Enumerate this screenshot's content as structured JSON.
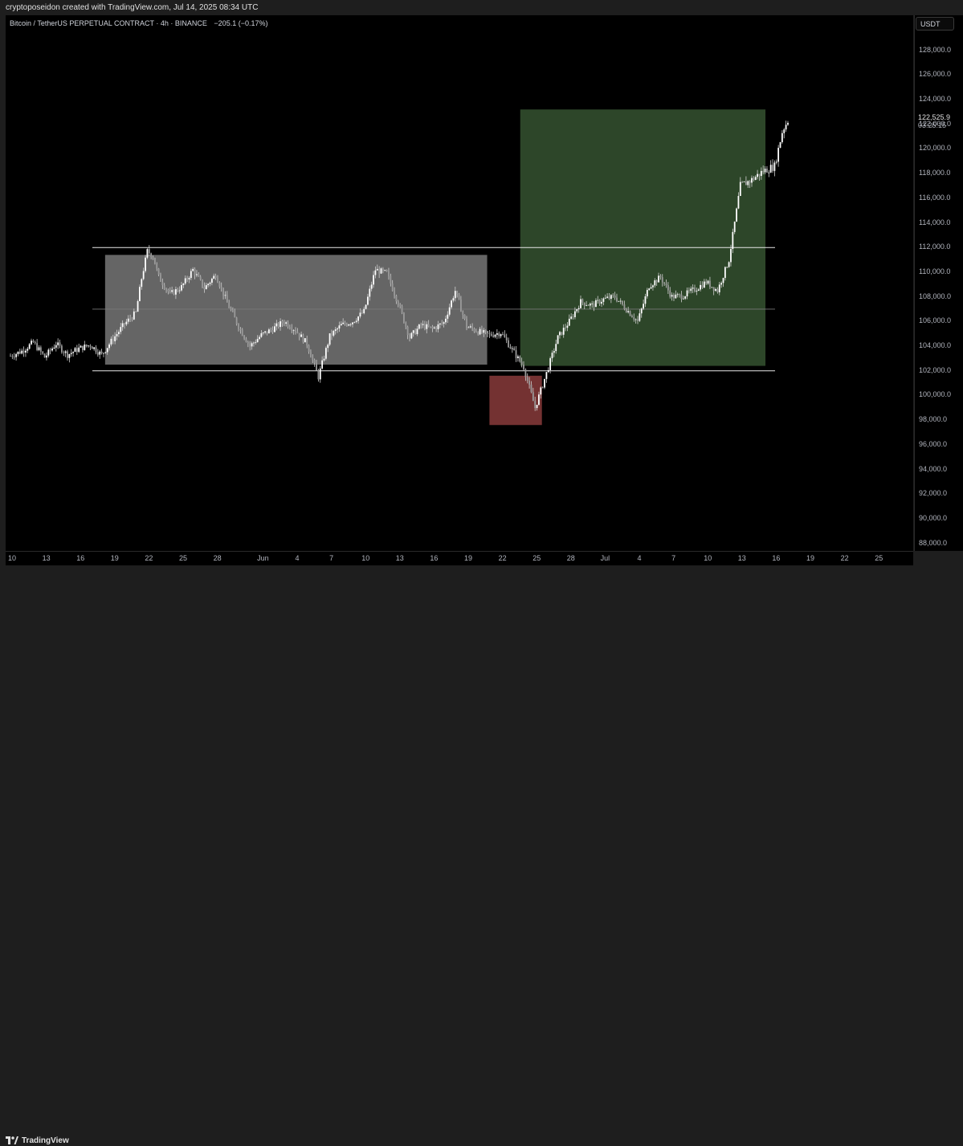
{
  "header": {
    "attribution": "cryptoposeidon created with TradingView.com, Jul 14, 2025 08:34 UTC"
  },
  "legend": {
    "symbol": "Bitcoin / TetherUS PERPETUAL CONTRACT · 4h · BINANCE",
    "change": "−205.1 (−0.17%)"
  },
  "price_axis": {
    "currency": "USDT",
    "last_price": "122,525.9",
    "countdown": "03:25:15"
  },
  "footer": {
    "brand": "TradingView"
  },
  "colors": {
    "background": "#000000",
    "range_box": "#8c8c8c",
    "target_box": "#2f4a2b",
    "stop_box": "#7a3535",
    "candle": "#ffffff"
  },
  "chart_data": {
    "type": "candlestick",
    "timeframe": "4h",
    "ylim": [
      87000,
      130000
    ],
    "y_ticks": [
      88000,
      90000,
      92000,
      94000,
      96000,
      98000,
      100000,
      102000,
      104000,
      106000,
      108000,
      110000,
      112000,
      114000,
      116000,
      118000,
      120000,
      122000,
      124000,
      126000,
      128000
    ],
    "y_tick_labels": [
      "88,000.0",
      "90,000.0",
      "92,000.0",
      "94,000.0",
      "96,000.0",
      "98,000.0",
      "100,000.0",
      "102,000.0",
      "104,000.0",
      "106,000.0",
      "108,000.0",
      "110,000.0",
      "112,000.0",
      "114,000.0",
      "116,000.0",
      "118,000.0",
      "120,000.0",
      "122,000.0",
      "124,000.0",
      "126,000.0",
      "128,000.0"
    ],
    "x_ticks": [
      {
        "day": 0,
        "label": "10"
      },
      {
        "day": 3,
        "label": "13"
      },
      {
        "day": 6,
        "label": "16"
      },
      {
        "day": 9,
        "label": "19"
      },
      {
        "day": 12,
        "label": "22"
      },
      {
        "day": 15,
        "label": "25"
      },
      {
        "day": 18,
        "label": "28"
      },
      {
        "day": 22,
        "label": "Jun"
      },
      {
        "day": 25,
        "label": "4"
      },
      {
        "day": 28,
        "label": "7"
      },
      {
        "day": 31,
        "label": "10"
      },
      {
        "day": 34,
        "label": "13"
      },
      {
        "day": 37,
        "label": "16"
      },
      {
        "day": 40,
        "label": "19"
      },
      {
        "day": 43,
        "label": "22"
      },
      {
        "day": 46,
        "label": "25"
      },
      {
        "day": 49,
        "label": "28"
      },
      {
        "day": 52,
        "label": "Jul"
      },
      {
        "day": 55,
        "label": "4"
      },
      {
        "day": 58,
        "label": "7"
      },
      {
        "day": 61,
        "label": "10"
      },
      {
        "day": 64,
        "label": "13"
      },
      {
        "day": 67,
        "label": "16"
      },
      {
        "day": 70,
        "label": "19"
      },
      {
        "day": 73,
        "label": "22"
      },
      {
        "day": 76,
        "label": "25"
      }
    ],
    "series_path": [
      [
        0,
        103200
      ],
      [
        1,
        103600
      ],
      [
        2,
        104300
      ],
      [
        3,
        103100
      ],
      [
        4,
        104200
      ],
      [
        5,
        103300
      ],
      [
        6,
        103800
      ],
      [
        7,
        104100
      ],
      [
        8,
        103300
      ],
      [
        9,
        104600
      ],
      [
        10,
        105800
      ],
      [
        11,
        106700
      ],
      [
        11.5,
        109500
      ],
      [
        12,
        111700
      ],
      [
        12.5,
        111300
      ],
      [
        13,
        109600
      ],
      [
        14,
        108200
      ],
      [
        15,
        108800
      ],
      [
        16,
        110200
      ],
      [
        17,
        108700
      ],
      [
        18,
        109800
      ],
      [
        19,
        107500
      ],
      [
        20,
        105600
      ],
      [
        21,
        104000
      ],
      [
        22,
        104900
      ],
      [
        23,
        105400
      ],
      [
        24,
        106000
      ],
      [
        25,
        105300
      ],
      [
        26,
        104200
      ],
      [
        27,
        101500
      ],
      [
        28,
        104800
      ],
      [
        29,
        105700
      ],
      [
        30,
        106000
      ],
      [
        31,
        106800
      ],
      [
        32,
        110200
      ],
      [
        33,
        109900
      ],
      [
        34,
        107500
      ],
      [
        35,
        104700
      ],
      [
        36,
        105700
      ],
      [
        37,
        105400
      ],
      [
        38,
        105900
      ],
      [
        39,
        108500
      ],
      [
        40,
        105600
      ],
      [
        41,
        105200
      ],
      [
        42,
        104900
      ],
      [
        43,
        105100
      ],
      [
        44,
        103700
      ],
      [
        45,
        102300
      ],
      [
        46,
        99000
      ],
      [
        47,
        101800
      ],
      [
        48,
        104700
      ],
      [
        49,
        106000
      ],
      [
        50,
        107600
      ],
      [
        51,
        107300
      ],
      [
        52,
        107800
      ],
      [
        53,
        108000
      ],
      [
        54,
        107000
      ],
      [
        55,
        106000
      ],
      [
        56,
        108900
      ],
      [
        57,
        109600
      ],
      [
        58,
        108000
      ],
      [
        59,
        108100
      ],
      [
        60,
        108600
      ],
      [
        61,
        109200
      ],
      [
        62,
        108500
      ],
      [
        63,
        111000
      ],
      [
        64,
        117000
      ],
      [
        65,
        117500
      ],
      [
        66,
        118200
      ],
      [
        67,
        118600
      ],
      [
        67.7,
        121500
      ],
      [
        68.3,
        122526
      ]
    ],
    "annotations": {
      "levels": [
        112000,
        107000,
        102000
      ],
      "range_box": {
        "day_start": 8.3,
        "day_end": 41.8,
        "price_high": 111400,
        "price_low": 102500
      },
      "target_box": {
        "day_start": 44.7,
        "day_end": 66.2,
        "price_high": 123200,
        "price_low": 102400
      },
      "stop_box": {
        "day_start": 42,
        "day_end": 46.6,
        "price_high": 101600,
        "price_low": 97600
      }
    },
    "last_price": 122525.9,
    "xlabel": "",
    "ylabel": ""
  }
}
